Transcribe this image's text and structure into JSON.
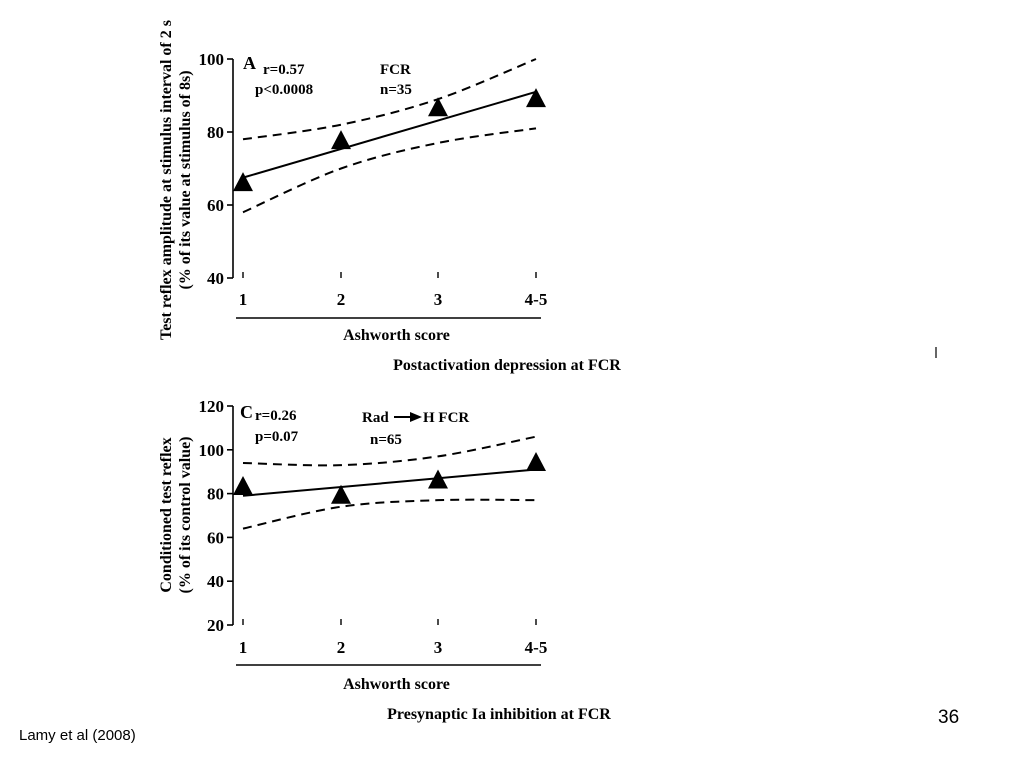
{
  "slide": {
    "number": "36",
    "citation": "Lamy et al (2008)"
  },
  "chart_data": [
    {
      "type": "scatter",
      "panel_letter": "A",
      "caption": "Postactivation depression at FCR",
      "xlabel": "Ashworth score",
      "ylabel": [
        "Test reflex amplitude at stimulus interval of 2 s",
        "(% of its value at stimulus of 8s)"
      ],
      "categories": [
        "1",
        "2",
        "3",
        "4-5"
      ],
      "yticks": [
        40,
        60,
        80,
        100
      ],
      "ylim": [
        40,
        100
      ],
      "stats": {
        "r": "r=0.57",
        "p": "p<0.0008"
      },
      "muscle": "FCR",
      "n": "n=35",
      "points": [
        66,
        77.5,
        86.5,
        89
      ],
      "regression": [
        67.5,
        91
      ],
      "upper_band": [
        78,
        82,
        89,
        100
      ],
      "lower_band": [
        58,
        70,
        77,
        81
      ]
    },
    {
      "type": "scatter",
      "panel_letter": "C",
      "caption": "Presynaptic Ia inhibition at FCR",
      "xlabel": "Ashworth score",
      "ylabel": [
        "Conditioned test reflex",
        "(% of its control value)"
      ],
      "categories": [
        "1",
        "2",
        "3",
        "4-5"
      ],
      "yticks": [
        20,
        40,
        60,
        80,
        100,
        120
      ],
      "ylim": [
        20,
        120
      ],
      "stats": {
        "r": "r=0.26",
        "p": "p=0.07"
      },
      "muscle_from": "Rad",
      "muscle_to": "H FCR",
      "n": "n=65",
      "points": [
        83,
        79,
        86,
        94
      ],
      "regression": [
        79,
        91
      ],
      "upper_band": [
        94,
        93,
        97,
        106
      ],
      "lower_band": [
        64,
        74,
        77,
        77
      ]
    }
  ]
}
